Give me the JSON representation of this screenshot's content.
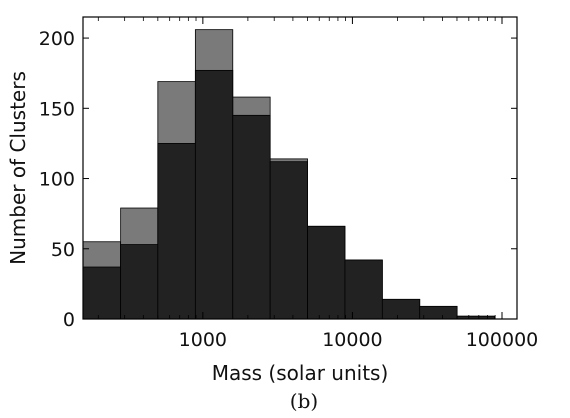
{
  "chart_data": {
    "type": "bar",
    "xscale": "log",
    "xlabel": "Mass (solar units)",
    "ylabel": "Number of Clusters",
    "panel_label": "(b)",
    "xlim": [
      158,
      126000
    ],
    "ylim": [
      0,
      215
    ],
    "grid": false,
    "x_ticks": [
      1000,
      10000,
      100000
    ],
    "x_tick_labels": [
      "1000",
      "10000",
      "100000"
    ],
    "y_ticks": [
      0,
      50,
      100,
      150,
      200
    ],
    "y_tick_labels": [
      "0",
      "50",
      "100",
      "150",
      "200"
    ],
    "bin_edges": [
      158,
      282,
      500,
      891,
      1585,
      2818,
      5012,
      8913,
      15849,
      28184,
      50119,
      89125,
      126000
    ],
    "series": [
      {
        "values": [
          55,
          79,
          169,
          206,
          158,
          114,
          66,
          42,
          14,
          9,
          2,
          0
        ],
        "color": "#7a7a7a"
      },
      {
        "values": [
          37,
          53,
          125,
          177,
          145,
          112,
          66,
          42,
          14,
          9,
          2,
          0
        ],
        "color": "#222222"
      }
    ]
  }
}
